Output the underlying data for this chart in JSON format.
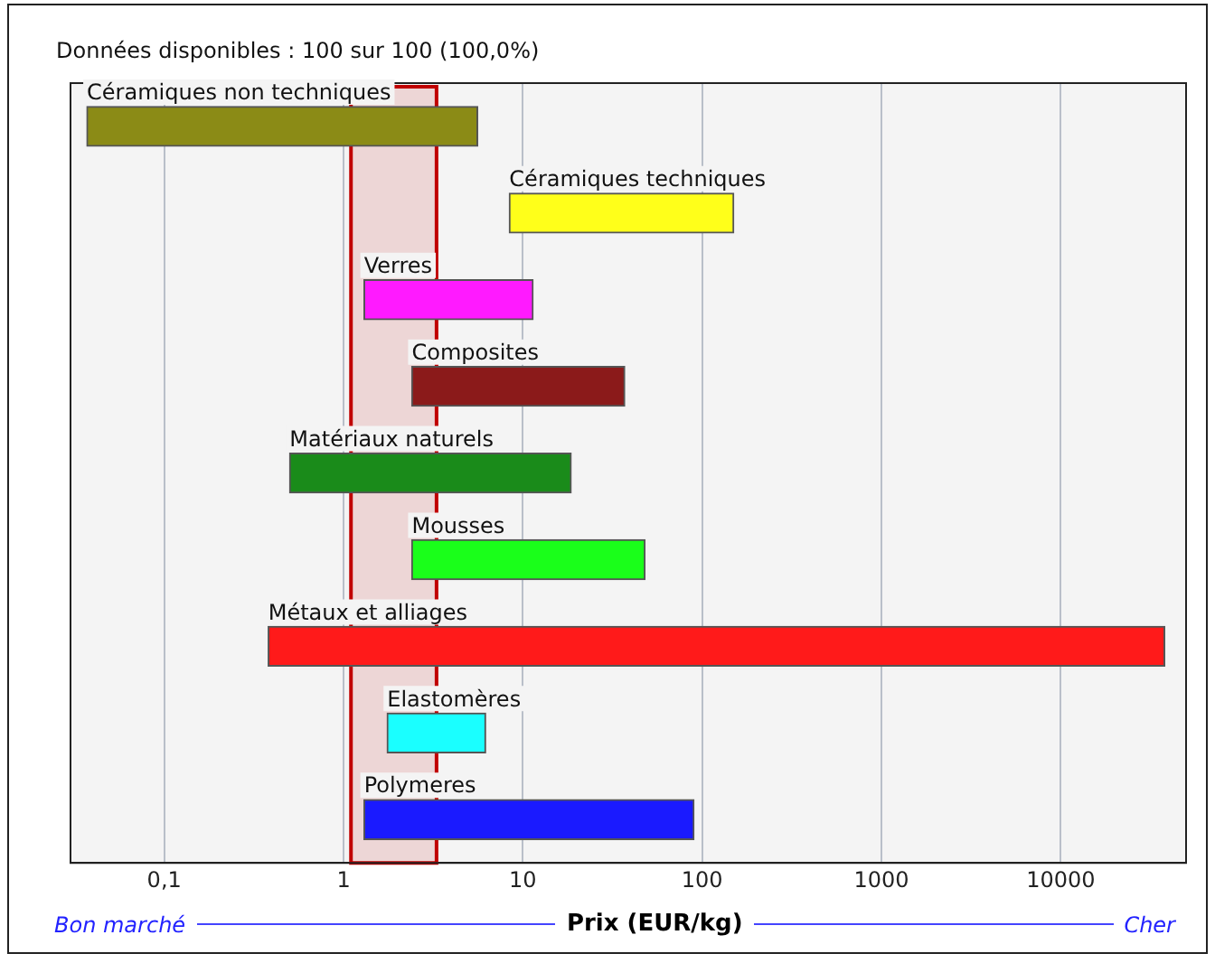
{
  "chart_data": {
    "type": "bar",
    "orientation": "horizontal",
    "title": "Données disponibles : 100 sur 100 (100,0%)",
    "xlabel": "Prix (EUR/kg)",
    "categories": [
      "Céramiques non techniques",
      "Céramiques techniques",
      "Verres",
      "Composites",
      "Matériaux naturels",
      "Mousses",
      "Métaux et alliages",
      "Elastomères",
      "Polymeres"
    ],
    "base": [
      0.037,
      8.4,
      1.3,
      2.4,
      0.5,
      2.4,
      0.38,
      1.75,
      1.3
    ],
    "values": [
      5.56,
      141.6,
      10.1,
      34.6,
      18.1,
      45.6,
      37999.62,
      4.45,
      88.7
    ],
    "colors": [
      "#8b8b16",
      "#ffff1a",
      "#ff1aff",
      "#8b1a1a",
      "#1a8b1a",
      "#1aff1a",
      "#ff1a1a",
      "#1affff",
      "#1a1aff"
    ],
    "log": "x",
    "xlim": [
      0.03,
      50000
    ],
    "xticks": [
      {
        "value": 0.1,
        "label": "0,1"
      },
      1,
      10,
      100,
      1000,
      10000
    ],
    "grid": "x",
    "legend": false,
    "bands": [
      {
        "axis": "x",
        "from": 1.1,
        "to": 3.3,
        "color": "#c00000"
      }
    ],
    "annotations": [
      "Bon marché",
      "Cher"
    ]
  }
}
